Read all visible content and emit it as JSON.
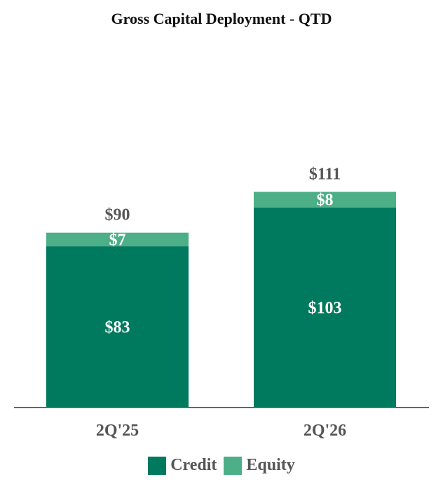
{
  "chart_data": {
    "type": "bar",
    "stacked": true,
    "title": "Gross Capital Deployment - QTD",
    "categories": [
      "2Q'25",
      "2Q'26"
    ],
    "series": [
      {
        "name": "Credit",
        "values": [
          83,
          103
        ],
        "labels": [
          "$83",
          "$103"
        ],
        "color": "#007a5e"
      },
      {
        "name": "Equity",
        "values": [
          7,
          8
        ],
        "labels": [
          "$7",
          "$8"
        ],
        "color": "#4caf88"
      }
    ],
    "totals": [
      90,
      111
    ],
    "total_labels": [
      "$90",
      "$111"
    ],
    "legend_position": "bottom",
    "grid": false
  }
}
